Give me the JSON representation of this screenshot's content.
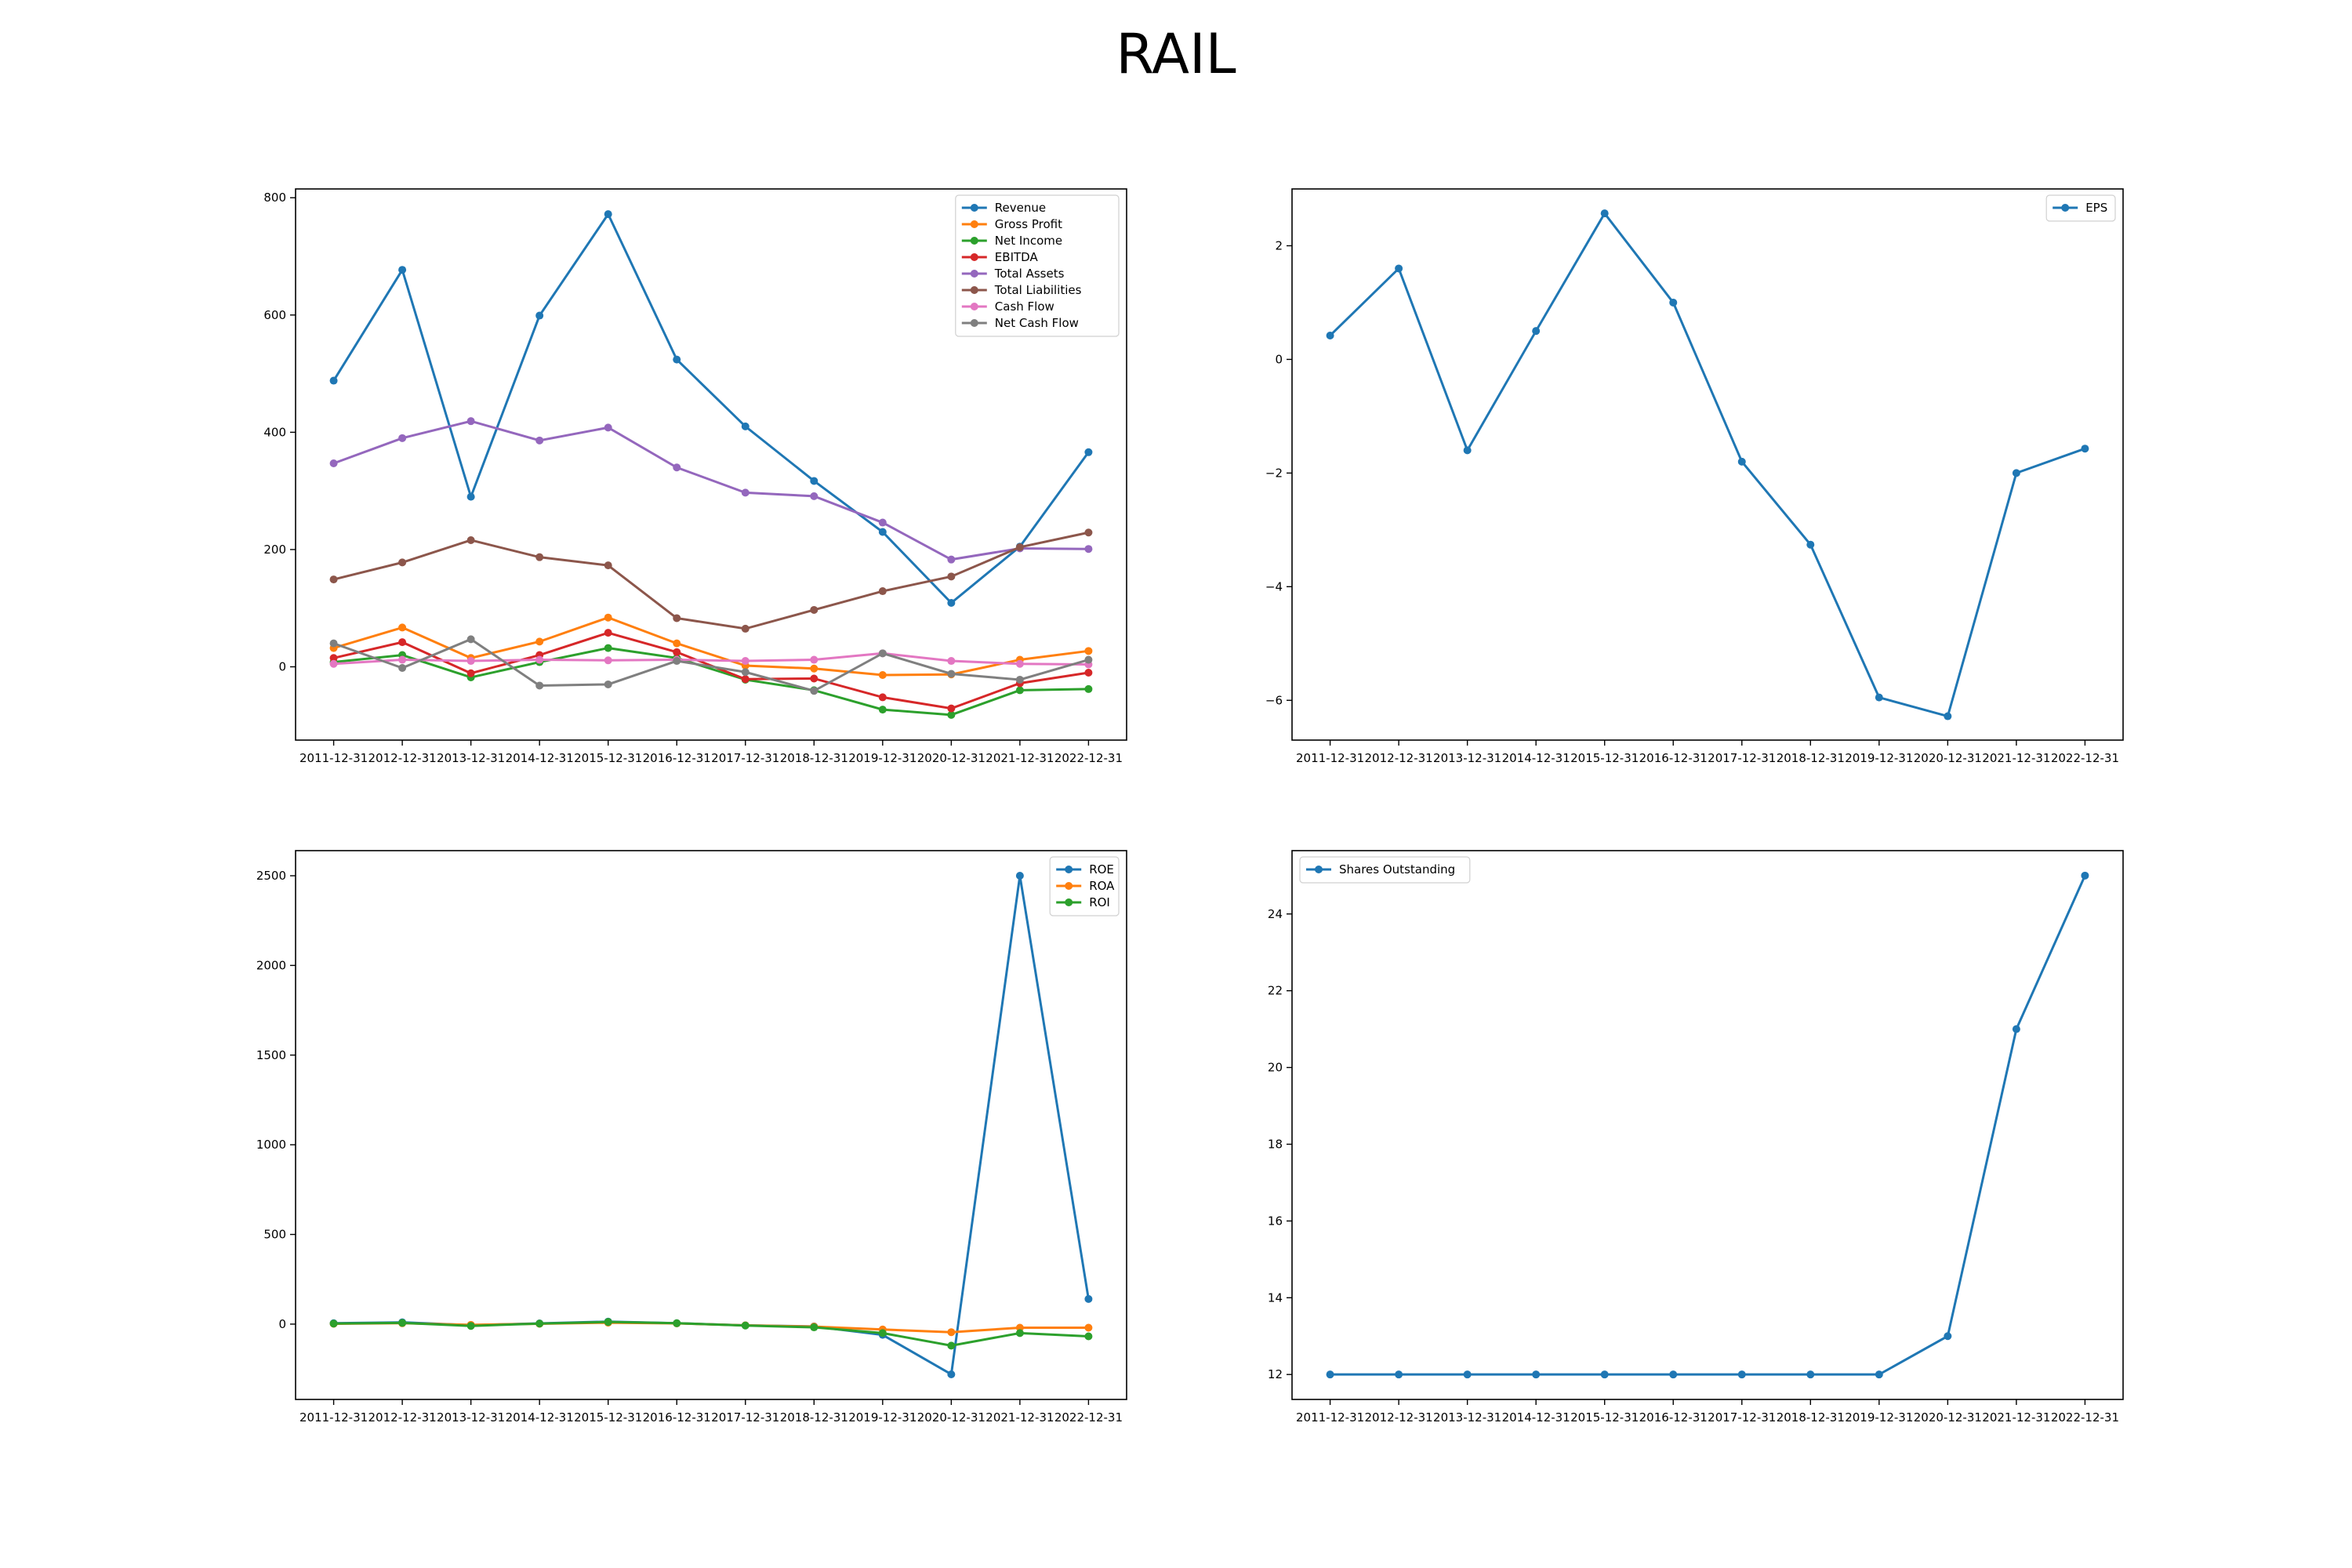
{
  "title": "RAIL",
  "chart_data": [
    {
      "type": "line",
      "title": "",
      "xlabel": "",
      "ylabel": "",
      "categories": [
        "2011-12-31",
        "2012-12-31",
        "2013-12-31",
        "2014-12-31",
        "2015-12-31",
        "2016-12-31",
        "2017-12-31",
        "2018-12-31",
        "2019-12-31",
        "2020-12-31",
        "2021-12-31",
        "2022-12-31"
      ],
      "ylim": [
        -125,
        815
      ],
      "yticks": [
        0,
        200,
        400,
        600,
        800
      ],
      "ytick_labels": [
        "0",
        "200",
        "400",
        "600",
        "800"
      ],
      "grid": false,
      "legend": "top-right",
      "series": [
        {
          "name": "Revenue",
          "color": "#1f77b4",
          "values": [
            488,
            677,
            290,
            599,
            772,
            524,
            410,
            317,
            230,
            109,
            205,
            366
          ]
        },
        {
          "name": "Gross Profit",
          "color": "#ff7f0e",
          "values": [
            32,
            67,
            15,
            43,
            84,
            40,
            2,
            -3,
            -14,
            -13,
            12,
            27
          ]
        },
        {
          "name": "Net Income",
          "color": "#2ca02c",
          "values": [
            8,
            20,
            -18,
            8,
            32,
            15,
            -22,
            -40,
            -73,
            -82,
            -40,
            -38
          ]
        },
        {
          "name": "EBITDA",
          "color": "#d62728",
          "values": [
            15,
            42,
            -11,
            20,
            58,
            25,
            -21,
            -20,
            -52,
            -71,
            -28,
            -10
          ]
        },
        {
          "name": "Total Assets",
          "color": "#9467bd",
          "values": [
            347,
            390,
            419,
            386,
            408,
            340,
            297,
            291,
            246,
            183,
            202,
            201
          ]
        },
        {
          "name": "Total Liabilities",
          "color": "#8c564b",
          "values": [
            149,
            178,
            216,
            187,
            173,
            83,
            65,
            97,
            129,
            154,
            204,
            229
          ]
        },
        {
          "name": "Cash Flow",
          "color": "#e377c2",
          "values": [
            5,
            12,
            10,
            12,
            11,
            12,
            10,
            12,
            23,
            10,
            5,
            4
          ]
        },
        {
          "name": "Net Cash Flow",
          "color": "#7f7f7f",
          "values": [
            40,
            -2,
            47,
            -32,
            -30,
            10,
            -9,
            -41,
            23,
            -12,
            -22,
            12
          ]
        }
      ]
    },
    {
      "type": "line",
      "title": "",
      "xlabel": "",
      "ylabel": "",
      "categories": [
        "2011-12-31",
        "2012-12-31",
        "2013-12-31",
        "2014-12-31",
        "2015-12-31",
        "2016-12-31",
        "2017-12-31",
        "2018-12-31",
        "2019-12-31",
        "2020-12-31",
        "2021-12-31",
        "2022-12-31"
      ],
      "ylim": [
        -6.7,
        3.0
      ],
      "yticks": [
        -6,
        -4,
        -2,
        0,
        2
      ],
      "ytick_labels": [
        "−6",
        "−4",
        "−2",
        "0",
        "2"
      ],
      "grid": false,
      "legend": "top-right",
      "series": [
        {
          "name": "EPS",
          "color": "#1f77b4",
          "values": [
            0.42,
            1.6,
            -1.6,
            0.5,
            2.57,
            1.0,
            -1.8,
            -3.26,
            -5.95,
            -6.28,
            -2.0,
            -1.57
          ]
        }
      ]
    },
    {
      "type": "line",
      "title": "",
      "xlabel": "",
      "ylabel": "",
      "categories": [
        "2011-12-31",
        "2012-12-31",
        "2013-12-31",
        "2014-12-31",
        "2015-12-31",
        "2016-12-31",
        "2017-12-31",
        "2018-12-31",
        "2019-12-31",
        "2020-12-31",
        "2021-12-31",
        "2022-12-31"
      ],
      "ylim": [
        -420,
        2640
      ],
      "yticks": [
        0,
        500,
        1000,
        1500,
        2000,
        2500
      ],
      "ytick_labels": [
        "0",
        "500",
        "1000",
        "1500",
        "2000",
        "2500"
      ],
      "grid": false,
      "legend": "top-right",
      "series": [
        {
          "name": "ROE",
          "color": "#1f77b4",
          "values": [
            5,
            10,
            -6,
            4,
            14,
            5,
            -7,
            -13,
            -60,
            -280,
            2500,
            140
          ]
        },
        {
          "name": "ROA",
          "color": "#ff7f0e",
          "values": [
            2,
            5,
            -4,
            2,
            8,
            4,
            -7,
            -14,
            -30,
            -45,
            -20,
            -20
          ]
        },
        {
          "name": "ROI",
          "color": "#2ca02c",
          "values": [
            3,
            7,
            -10,
            3,
            12,
            5,
            -8,
            -18,
            -50,
            -120,
            -50,
            -68
          ]
        }
      ]
    },
    {
      "type": "line",
      "title": "",
      "xlabel": "",
      "ylabel": "",
      "categories": [
        "2011-12-31",
        "2012-12-31",
        "2013-12-31",
        "2014-12-31",
        "2015-12-31",
        "2016-12-31",
        "2017-12-31",
        "2018-12-31",
        "2019-12-31",
        "2020-12-31",
        "2021-12-31",
        "2022-12-31"
      ],
      "ylim": [
        11.35,
        25.65
      ],
      "yticks": [
        12,
        14,
        16,
        18,
        20,
        22,
        24
      ],
      "ytick_labels": [
        "12",
        "14",
        "16",
        "18",
        "20",
        "22",
        "24"
      ],
      "grid": false,
      "legend": "top-left",
      "series": [
        {
          "name": "Shares Outstanding",
          "color": "#1f77b4",
          "values": [
            12,
            12,
            12,
            12,
            12,
            12,
            12,
            12,
            12,
            13,
            21,
            25
          ]
        }
      ]
    }
  ]
}
